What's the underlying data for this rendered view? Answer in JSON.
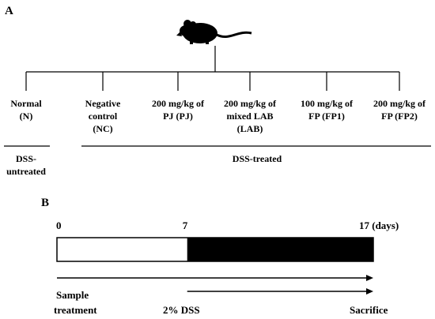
{
  "panel_a": {
    "label": "A",
    "mouse_icon": "mouse-icon",
    "groups": [
      {
        "lines": [
          "Normal",
          "(N)"
        ]
      },
      {
        "lines": [
          "Negative",
          "control",
          "(NC)"
        ]
      },
      {
        "lines": [
          "200 mg/kg of",
          "PJ (PJ)"
        ]
      },
      {
        "lines": [
          "200 mg/kg of",
          "mixed LAB",
          "(LAB)"
        ]
      },
      {
        "lines": [
          "100 mg/kg of",
          "FP (FP1)"
        ]
      },
      {
        "lines": [
          "200 mg/kg of",
          "FP (FP2)"
        ]
      }
    ],
    "untreated_label": [
      "DSS-",
      "untreated"
    ],
    "treated_label": "DSS-treated"
  },
  "panel_b": {
    "label": "B",
    "ticks": [
      {
        "label": "0",
        "day": 0
      },
      {
        "label": "7",
        "day": 7
      },
      {
        "label": "17 (days)",
        "day": 17
      }
    ],
    "fill_start_day": 7,
    "fill_end_day": 17,
    "arrow1_labels": [
      "Sample",
      "treatment"
    ],
    "arrow2_start_label": "2% DSS",
    "arrow2_end_label": "Sacrifice"
  }
}
